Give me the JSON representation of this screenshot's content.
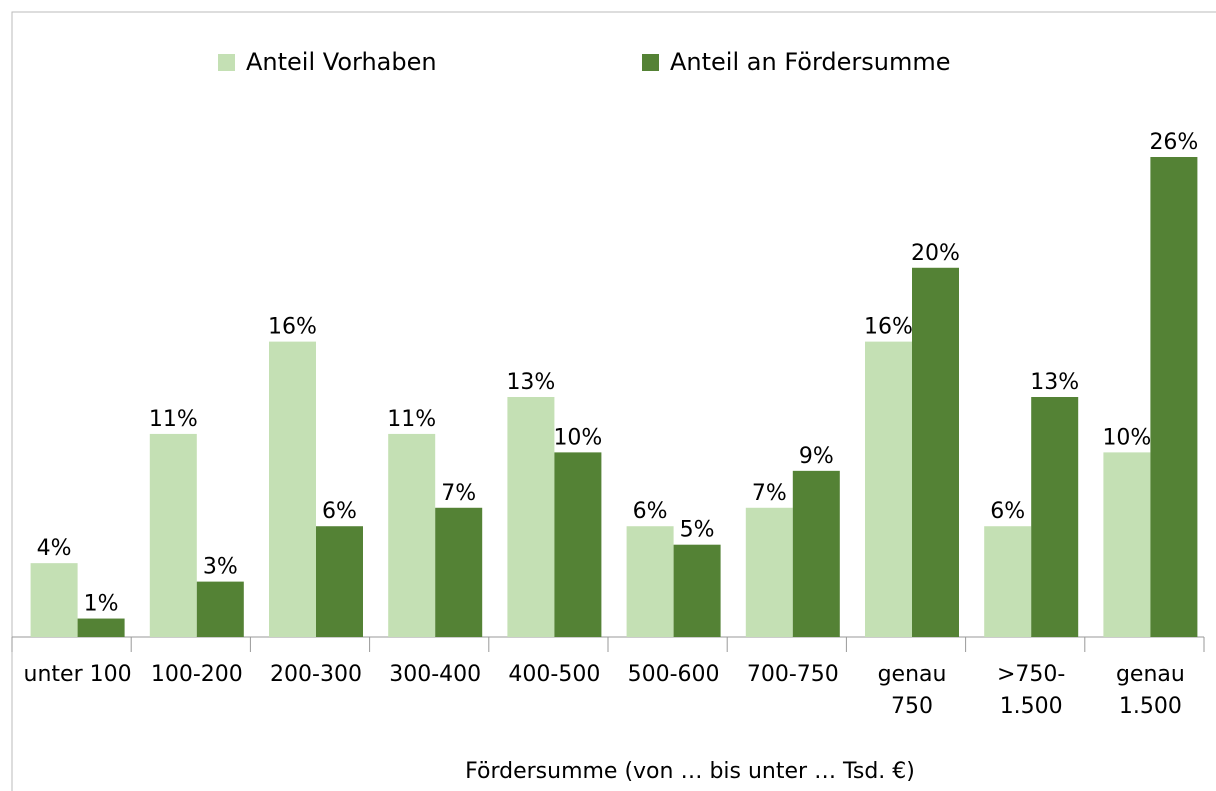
{
  "chart_data": {
    "type": "bar",
    "x_label": "Fördersumme (von … bis unter … Tsd. €)",
    "categories": [
      "unter 100",
      "100-200",
      "200-300",
      "300-400",
      "400-500",
      "500-600",
      "700-750",
      "genau\n750",
      ">750-\n1.500",
      "genau\n1.500"
    ],
    "series": [
      {
        "name": "Anteil Vorhaben",
        "color": "#c4e0b4",
        "values": [
          4,
          11,
          16,
          11,
          13,
          6,
          7,
          16,
          6,
          10
        ],
        "value_labels": [
          "4%",
          "11%",
          "16%",
          "11%",
          "13%",
          "6%",
          "7%",
          "16%",
          "6%",
          "10%"
        ]
      },
      {
        "name": "Anteil an Fördersumme",
        "color": "#548235",
        "values": [
          1,
          3,
          6,
          7,
          10,
          5,
          9,
          20,
          13,
          26
        ],
        "value_labels": [
          "1%",
          "3%",
          "6%",
          "7%",
          "10%",
          "5%",
          "9%",
          "20%",
          "13%",
          "26%"
        ]
      }
    ],
    "legend": "top"
  }
}
